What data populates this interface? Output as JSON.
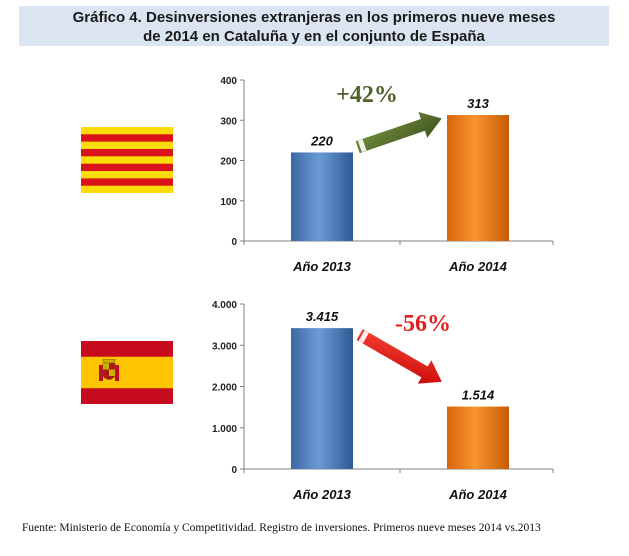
{
  "title": {
    "line1": "Gráfico 4. Desinversiones extranjeras en los primeros nueve meses",
    "line2": "de 2014 en Cataluña y en el conjunto de España"
  },
  "source": "Fuente: Ministerio de Economía y Competitividad. Registro de inversiones. Primeros nueve meses 2014 vs.2013",
  "chart_data": [
    {
      "type": "bar",
      "region_icon": "catalonia-flag",
      "categories": [
        "Año 2013",
        "Año 2014"
      ],
      "values": [
        220,
        313
      ],
      "data_labels": [
        "220",
        "313"
      ],
      "ylim": [
        0,
        400
      ],
      "yticks": [
        0,
        100,
        200,
        300,
        400
      ],
      "ytick_labels": [
        "0",
        "100",
        "200",
        "300",
        "400"
      ],
      "bar_colors": [
        "#4f81bd",
        "#f07d15"
      ],
      "grid": false,
      "annotation": {
        "text": "+42%",
        "direction": "up",
        "color": "#4f6228",
        "arrow_color": "#4f6228"
      }
    },
    {
      "type": "bar",
      "region_icon": "spain-flag",
      "categories": [
        "Año 2013",
        "Año 2014"
      ],
      "values": [
        3415,
        1514
      ],
      "data_labels": [
        "3.415",
        "1.514"
      ],
      "ylim": [
        0,
        4000
      ],
      "yticks": [
        0,
        1000,
        2000,
        3000,
        4000
      ],
      "ytick_labels": [
        "0",
        "1.000",
        "2.000",
        "3.000",
        "4.000"
      ],
      "bar_colors": [
        "#4f81bd",
        "#f07d15"
      ],
      "grid": false,
      "annotation": {
        "text": "-56%",
        "direction": "down",
        "color": "#e41e1e",
        "arrow_color": "#e41e1e"
      }
    }
  ]
}
